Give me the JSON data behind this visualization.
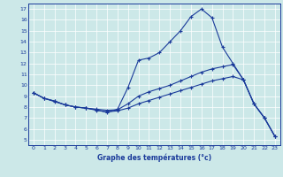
{
  "title": "",
  "xlabel": "Graphe des températures (°c)",
  "background_color": "#cce8e8",
  "line_color": "#1a3a9a",
  "xlim": [
    -0.5,
    23.5
  ],
  "ylim": [
    4.5,
    17.5
  ],
  "yticks": [
    5,
    6,
    7,
    8,
    9,
    10,
    11,
    12,
    13,
    14,
    15,
    16,
    17
  ],
  "xticks": [
    0,
    1,
    2,
    3,
    4,
    5,
    6,
    7,
    8,
    9,
    10,
    11,
    12,
    13,
    14,
    15,
    16,
    17,
    18,
    19,
    20,
    21,
    22,
    23
  ],
  "line1_y": [
    9.3,
    8.8,
    8.5,
    8.2,
    8.0,
    7.9,
    7.75,
    7.5,
    7.8,
    9.8,
    12.3,
    12.5,
    13.0,
    14.0,
    15.0,
    16.3,
    17.0,
    16.2,
    13.5,
    12.0,
    10.5,
    8.3,
    7.0,
    5.3
  ],
  "line2_y": [
    9.3,
    8.8,
    8.55,
    8.2,
    8.0,
    7.9,
    7.8,
    7.7,
    7.75,
    8.3,
    9.0,
    9.4,
    9.7,
    10.0,
    10.4,
    10.8,
    11.2,
    11.5,
    11.7,
    11.9,
    10.5,
    8.3,
    7.0,
    5.3
  ],
  "line3_y": [
    9.3,
    8.8,
    8.55,
    8.2,
    8.0,
    7.9,
    7.7,
    7.55,
    7.65,
    7.9,
    8.3,
    8.6,
    8.9,
    9.2,
    9.5,
    9.8,
    10.1,
    10.4,
    10.6,
    10.8,
    10.5,
    8.3,
    7.0,
    5.3
  ]
}
